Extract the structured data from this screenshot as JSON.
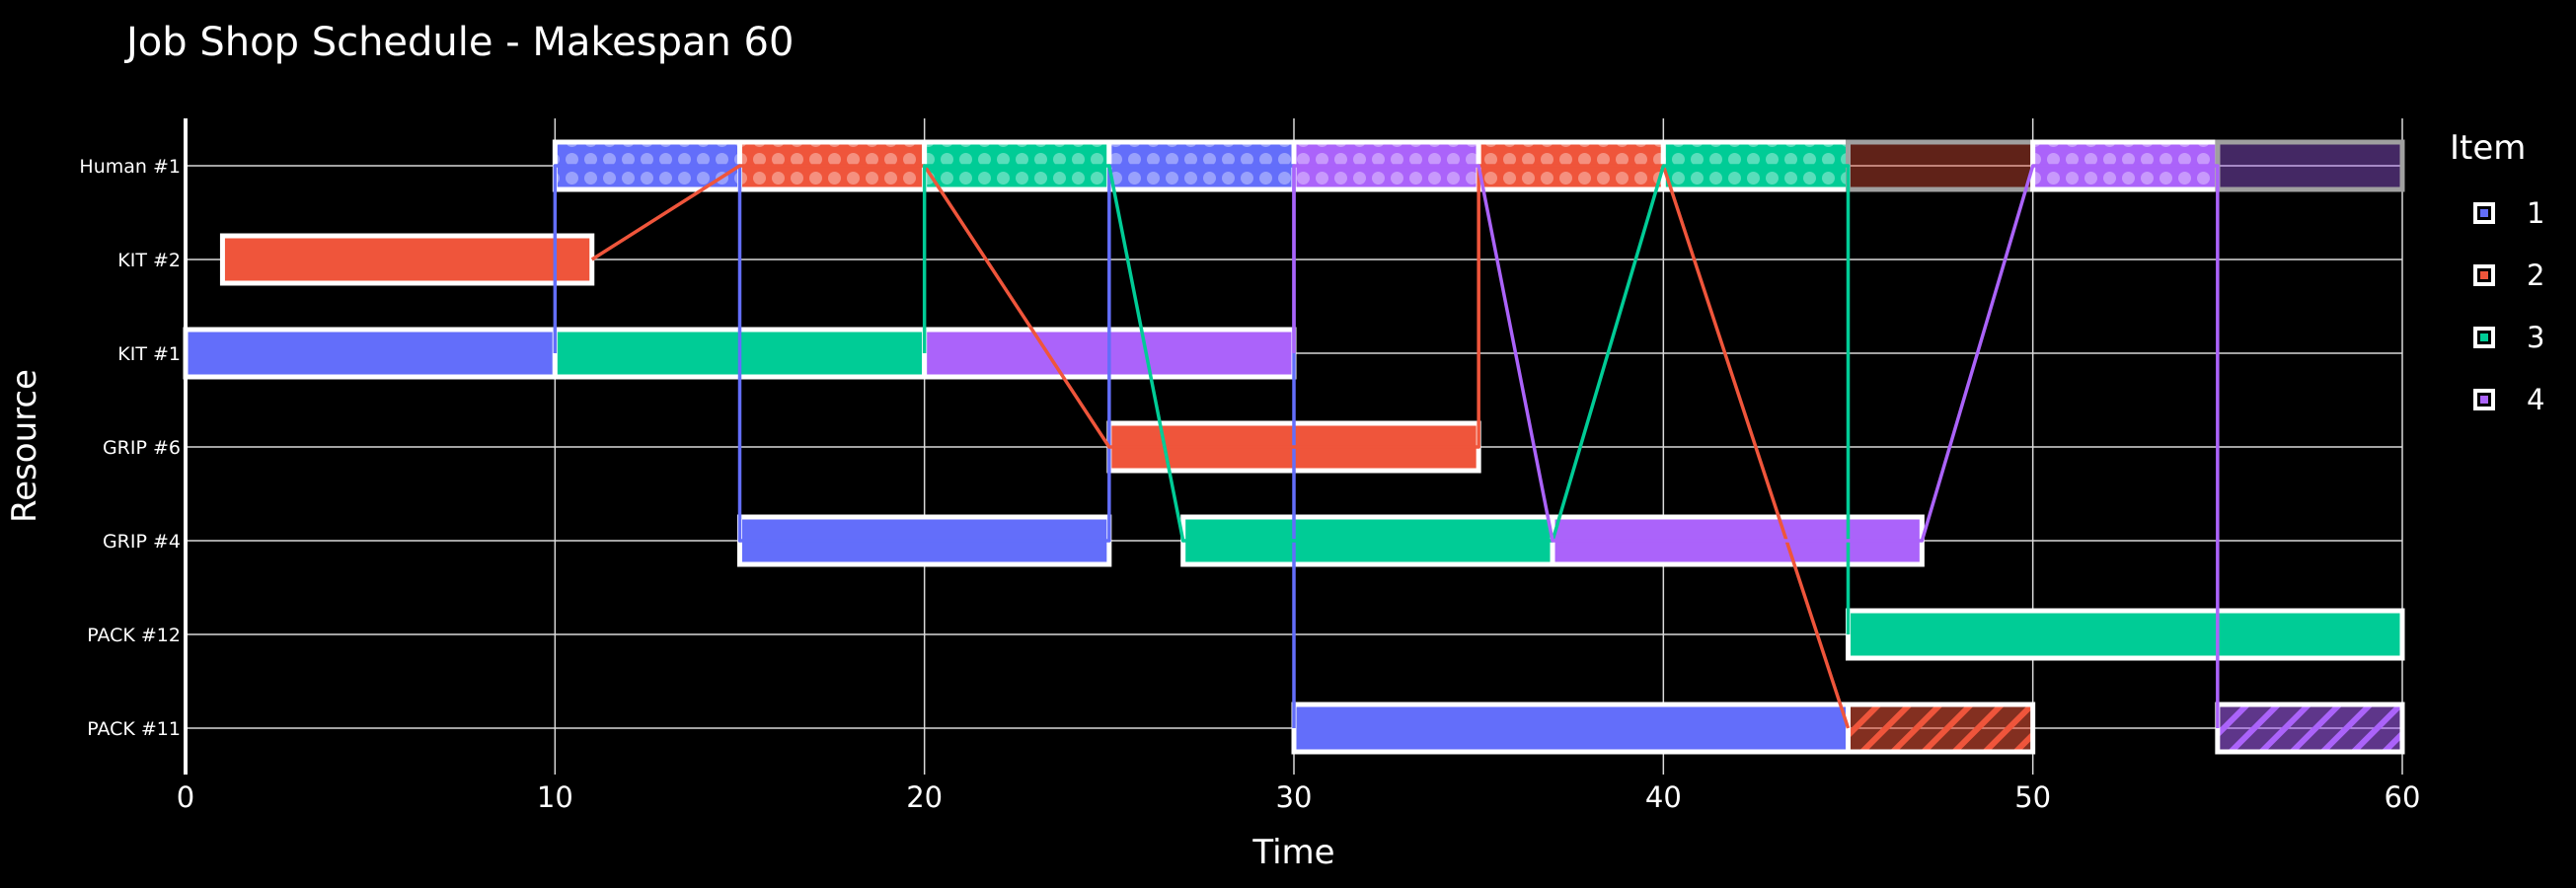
{
  "chart_data": {
    "type": "gantt",
    "title": "Job Shop Schedule - Makespan 60",
    "xlabel": "Time",
    "ylabel": "Resource",
    "xlim": [
      0,
      60
    ],
    "xticks": [
      0,
      10,
      20,
      30,
      40,
      50,
      60
    ],
    "grid": true,
    "legend_title": "Item",
    "legend_position": "right",
    "resources": [
      "Human #1",
      "KIT #2",
      "KIT #1",
      "GRIP #6",
      "GRIP #4",
      "PACK #12",
      "PACK #11"
    ],
    "items": [
      {
        "name": "1",
        "color": "#636efa"
      },
      {
        "name": "2",
        "color": "#ef553b"
      },
      {
        "name": "3",
        "color": "#00cc96"
      },
      {
        "name": "4",
        "color": "#ab63fa"
      }
    ],
    "tasks": [
      {
        "resource": "Human #1",
        "item": "1",
        "start": 10,
        "end": 15,
        "style": "dots"
      },
      {
        "resource": "Human #1",
        "item": "2",
        "start": 15,
        "end": 20,
        "style": "dots"
      },
      {
        "resource": "Human #1",
        "item": "3",
        "start": 20,
        "end": 25,
        "style": "dots"
      },
      {
        "resource": "Human #1",
        "item": "1",
        "start": 25,
        "end": 30,
        "style": "dots"
      },
      {
        "resource": "Human #1",
        "item": "4",
        "start": 30,
        "end": 35,
        "style": "dots"
      },
      {
        "resource": "Human #1",
        "item": "2",
        "start": 35,
        "end": 40,
        "style": "dots"
      },
      {
        "resource": "Human #1",
        "item": "3",
        "start": 40,
        "end": 45,
        "style": "dots"
      },
      {
        "resource": "Human #1",
        "item": "2",
        "start": 45,
        "end": 50,
        "style": "faded"
      },
      {
        "resource": "Human #1",
        "item": "4",
        "start": 50,
        "end": 55,
        "style": "dots"
      },
      {
        "resource": "Human #1",
        "item": "4",
        "start": 55,
        "end": 60,
        "style": "faded"
      },
      {
        "resource": "KIT #2",
        "item": "2",
        "start": 1,
        "end": 11,
        "style": "solid"
      },
      {
        "resource": "KIT #1",
        "item": "1",
        "start": 0,
        "end": 10,
        "style": "solid"
      },
      {
        "resource": "KIT #1",
        "item": "3",
        "start": 10,
        "end": 20,
        "style": "solid"
      },
      {
        "resource": "KIT #1",
        "item": "4",
        "start": 20,
        "end": 30,
        "style": "solid"
      },
      {
        "resource": "GRIP #6",
        "item": "2",
        "start": 25,
        "end": 35,
        "style": "solid"
      },
      {
        "resource": "GRIP #4",
        "item": "1",
        "start": 15,
        "end": 25,
        "style": "solid"
      },
      {
        "resource": "GRIP #4",
        "item": "3",
        "start": 27,
        "end": 37,
        "style": "solid"
      },
      {
        "resource": "GRIP #4",
        "item": "4",
        "start": 37,
        "end": 47,
        "style": "solid"
      },
      {
        "resource": "PACK #12",
        "item": "3",
        "start": 45,
        "end": 60,
        "style": "solid"
      },
      {
        "resource": "PACK #11",
        "item": "1",
        "start": 30,
        "end": 45,
        "style": "solid"
      },
      {
        "resource": "PACK #11",
        "item": "2",
        "start": 45,
        "end": 50,
        "style": "hatch"
      },
      {
        "resource": "PACK #11",
        "item": "4",
        "start": 55,
        "end": 60,
        "style": "hatch"
      }
    ],
    "routes": [
      {
        "item": "1",
        "points": [
          [
            "KIT #1",
            10
          ],
          [
            "Human #1",
            10
          ],
          [
            "Human #1",
            15
          ],
          [
            "GRIP #4",
            15
          ],
          [
            "GRIP #4",
            25
          ],
          [
            "Human #1",
            25
          ],
          [
            "Human #1",
            30
          ],
          [
            "PACK #11",
            30
          ]
        ]
      },
      {
        "item": "2",
        "points": [
          [
            "KIT #2",
            11
          ],
          [
            "Human #1",
            15
          ],
          [
            "Human #1",
            20
          ],
          [
            "GRIP #6",
            25
          ],
          [
            "GRIP #6",
            35
          ],
          [
            "Human #1",
            35
          ],
          [
            "Human #1",
            40
          ],
          [
            "PACK #11",
            45
          ]
        ]
      },
      {
        "item": "3",
        "points": [
          [
            "KIT #1",
            20
          ],
          [
            "Human #1",
            20
          ],
          [
            "Human #1",
            25
          ],
          [
            "GRIP #4",
            27
          ],
          [
            "GRIP #4",
            37
          ],
          [
            "Human #1",
            40
          ],
          [
            "Human #1",
            45
          ],
          [
            "PACK #12",
            45
          ]
        ]
      },
      {
        "item": "4",
        "points": [
          [
            "KIT #1",
            30
          ],
          [
            "Human #1",
            30
          ],
          [
            "Human #1",
            35
          ],
          [
            "GRIP #4",
            37
          ],
          [
            "GRIP #4",
            47
          ],
          [
            "Human #1",
            50
          ],
          [
            "Human #1",
            55
          ],
          [
            "PACK #11",
            55
          ]
        ]
      }
    ]
  }
}
